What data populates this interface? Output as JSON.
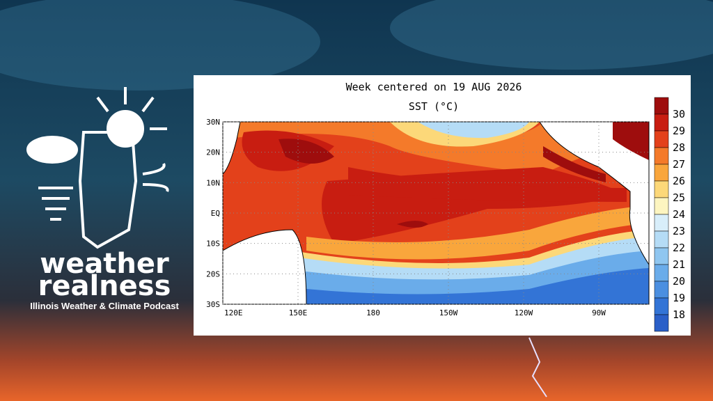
{
  "logo": {
    "line1": "weather",
    "line2": "realness",
    "tagline": "Illinois Weather & Climate Podcast"
  },
  "map": {
    "title": "Week centered on 19 AUG 2026",
    "subtitle": "SST (°C)",
    "lat_labels": [
      "30N",
      "20N",
      "10N",
      "EQ",
      "10S",
      "20S",
      "30S"
    ],
    "lon_labels": [
      "120E",
      "150E",
      "180",
      "150W",
      "120W",
      "90W"
    ],
    "colorbar": {
      "labels": [
        30,
        29,
        28,
        27,
        26,
        25,
        24,
        23,
        22,
        21,
        20,
        19,
        18
      ],
      "colors": [
        "#9e0d0d",
        "#c81d11",
        "#e3411b",
        "#f47a2a",
        "#f9a63c",
        "#fcd879",
        "#fdf5c0",
        "#d8eefa",
        "#b5dcf6",
        "#8fc6f0",
        "#6aacea",
        "#4b8fe0",
        "#3374d6",
        "#2a5fc8"
      ]
    }
  }
}
